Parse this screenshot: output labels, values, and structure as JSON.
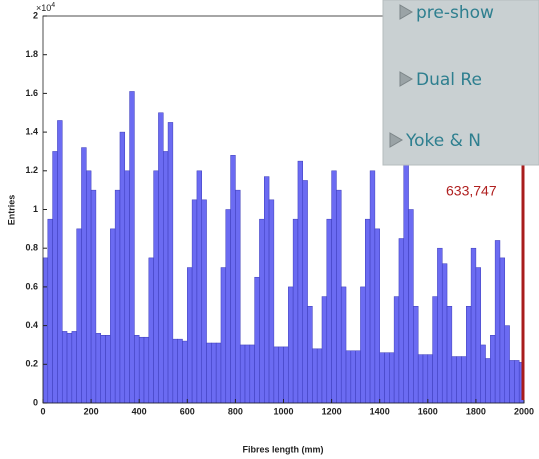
{
  "chart_data": {
    "type": "histogram",
    "xlabel": "Fibres length (mm)",
    "ylabel": "Entries",
    "y_multiplier": "×10",
    "y_multiplier_exponent": "4",
    "bins": [
      0,
      20,
      40,
      60,
      80,
      100,
      120,
      140,
      160,
      180,
      200,
      220,
      240,
      260,
      280,
      300,
      320,
      340,
      360,
      380,
      400,
      420,
      440,
      460,
      480,
      500,
      520,
      540,
      560,
      580,
      600,
      620,
      640,
      660,
      680,
      700,
      720,
      740,
      760,
      780,
      800,
      820,
      840,
      860,
      880,
      900,
      920,
      940,
      960,
      980,
      1000,
      1020,
      1040,
      1060,
      1080,
      1100,
      1120,
      1140,
      1160,
      1180,
      1200,
      1220,
      1240,
      1260,
      1280,
      1300,
      1320,
      1340,
      1360,
      1380,
      1400,
      1420,
      1440,
      1460,
      1480,
      1500,
      1520,
      1540,
      1560,
      1580,
      1600,
      1620,
      1640,
      1660,
      1680,
      1700,
      1720,
      1740,
      1760,
      1780,
      1800,
      1820,
      1840,
      1860,
      1880,
      1900,
      1920,
      1940,
      1960,
      1980,
      2000
    ],
    "values": [
      0.75,
      0.95,
      1.3,
      1.46,
      0.37,
      0.36,
      0.37,
      0.9,
      1.32,
      1.2,
      1.1,
      0.36,
      0.35,
      0.35,
      0.9,
      1.1,
      1.4,
      1.2,
      1.61,
      0.35,
      0.34,
      0.34,
      0.75,
      1.2,
      1.5,
      1.3,
      1.45,
      0.33,
      0.33,
      0.32,
      0.7,
      1.05,
      1.2,
      1.05,
      0.31,
      0.31,
      0.31,
      0.7,
      1.0,
      1.28,
      1.1,
      0.3,
      0.3,
      0.3,
      0.65,
      0.95,
      1.17,
      1.05,
      0.29,
      0.29,
      0.29,
      0.6,
      0.95,
      1.25,
      1.15,
      0.5,
      0.28,
      0.28,
      0.55,
      0.95,
      1.2,
      1.1,
      0.6,
      0.27,
      0.27,
      0.27,
      0.6,
      0.95,
      1.2,
      0.9,
      0.26,
      0.26,
      0.26,
      0.55,
      0.85,
      1.23,
      1.0,
      0.5,
      0.25,
      0.25,
      0.25,
      0.55,
      0.8,
      0.72,
      0.5,
      0.24,
      0.24,
      0.24,
      0.5,
      0.8,
      0.7,
      0.3,
      0.23,
      0.35,
      0.84,
      0.75,
      0.4,
      0.22,
      0.22,
      0.21
    ],
    "color": "#6b6bf2",
    "xlim": [
      0,
      2000
    ],
    "xticks": [
      0,
      200,
      400,
      600,
      800,
      1000,
      1200,
      1400,
      1600,
      1800,
      2000
    ],
    "ylim": [
      0,
      2
    ],
    "yticks": [
      0,
      0.2,
      0.4,
      0.6,
      0.8,
      1,
      1.2,
      1.4,
      1.6,
      1.8,
      2
    ],
    "annotation": "633,747"
  },
  "slide_overlay": {
    "items": [
      "pre-show",
      "Dual Re",
      "Yoke & N"
    ]
  }
}
